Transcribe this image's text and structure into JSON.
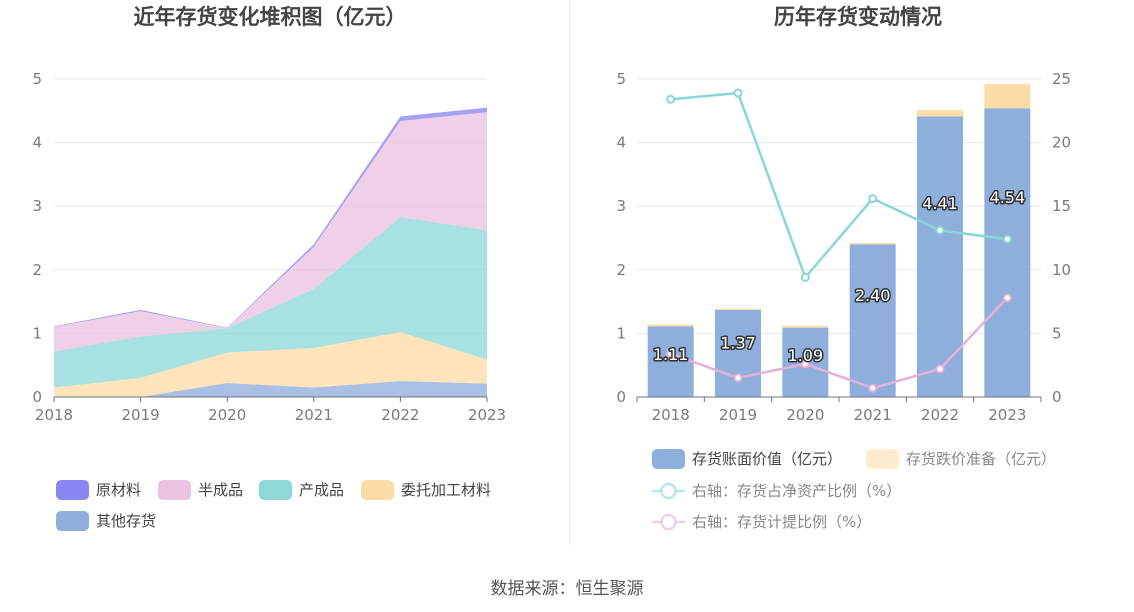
{
  "source": "数据来源：恒生聚源",
  "chart_data": [
    {
      "type": "area",
      "title": "近年存货变化堆积图（亿元）",
      "x": [
        "2018",
        "2019",
        "2020",
        "2021",
        "2022",
        "2023"
      ],
      "ylim": [
        0,
        5
      ],
      "yticks": [
        "0",
        "1",
        "2",
        "3",
        "4",
        "5"
      ],
      "stacked": true,
      "grid": true,
      "legend_position": "bottom",
      "series": [
        {
          "name": "其他存货",
          "color": "#8eaedc",
          "values": [
            0.0,
            0.0,
            0.22,
            0.15,
            0.25,
            0.21
          ]
        },
        {
          "name": "委托加工材料",
          "color": "#fcdca6",
          "values": [
            0.15,
            0.3,
            0.48,
            0.62,
            0.77,
            0.38
          ]
        },
        {
          "name": "产成品",
          "color": "#8fd8d8",
          "values": [
            0.57,
            0.65,
            0.38,
            0.93,
            1.81,
            2.03
          ]
        },
        {
          "name": "半成品",
          "color": "#ecc3e1",
          "values": [
            0.38,
            0.4,
            0.0,
            0.66,
            1.51,
            1.86
          ]
        },
        {
          "name": "原材料",
          "color": "#8a87f2",
          "values": [
            0.01,
            0.02,
            0.01,
            0.04,
            0.07,
            0.07
          ]
        }
      ],
      "legend_order": [
        "原材料",
        "半成品",
        "产成品",
        "委托加工材料",
        "其他存货"
      ]
    },
    {
      "type": "bar",
      "title": "历年存货变动情况",
      "categories": [
        "2018",
        "2019",
        "2020",
        "2021",
        "2022",
        "2023"
      ],
      "ylim": [
        0,
        5
      ],
      "yticks": [
        "0",
        "1",
        "2",
        "3",
        "4",
        "5"
      ],
      "y2lim": [
        0,
        25
      ],
      "y2ticks": [
        "0",
        "5",
        "10",
        "15",
        "20",
        "25"
      ],
      "stacked": true,
      "grid": true,
      "legend_position": "bottom",
      "series": [
        {
          "name": "存货账面价值（亿元）",
          "type": "bar",
          "color": "#8eaedc",
          "values": [
            1.11,
            1.37,
            1.09,
            2.4,
            4.41,
            4.54
          ],
          "labels": [
            "1.11",
            "1.37",
            "1.09",
            "2.40",
            "4.41",
            "4.54"
          ]
        },
        {
          "name": "存货跌价准备（亿元）",
          "type": "bar",
          "color": "#fcdca6",
          "values": [
            0.03,
            0.02,
            0.03,
            0.02,
            0.1,
            0.38
          ]
        },
        {
          "name": "右轴：存货占净资产比例（%）",
          "type": "line",
          "axis": "right",
          "color": "#8ad6d6",
          "values": [
            23.4,
            23.9,
            9.4,
            15.6,
            13.1,
            12.4
          ]
        },
        {
          "name": "右轴：存货计提比例（%）",
          "type": "line",
          "axis": "right",
          "color": "#e5b0d8",
          "values": [
            3.4,
            1.5,
            2.6,
            0.7,
            2.2,
            7.8
          ]
        }
      ]
    }
  ]
}
